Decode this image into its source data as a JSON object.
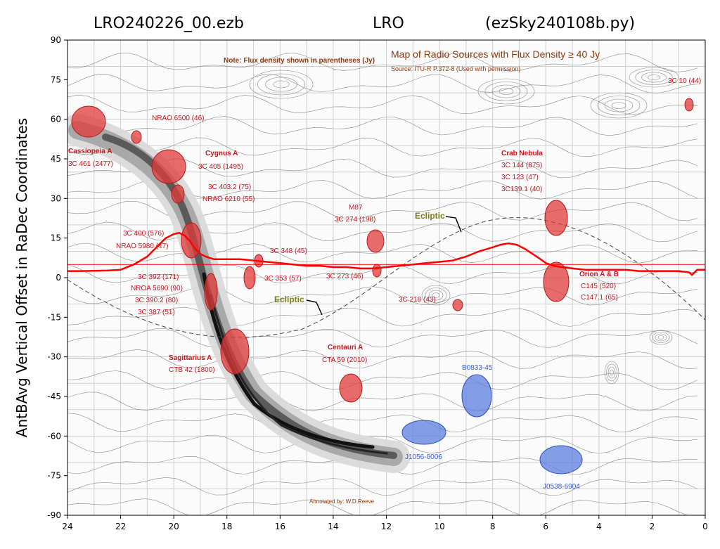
{
  "header": {
    "left": "LRO240226_00.ezb",
    "center": "LRO",
    "right": "(ezSky240108b.py)"
  },
  "chart_data": {
    "type": "line",
    "ylabel": "AntBAvg Vertical Offset in RaDec Coordinates",
    "xlabel": "",
    "xlim": [
      24,
      0
    ],
    "ylim": [
      -90,
      90
    ],
    "x_ticks": [
      "24",
      "22",
      "20",
      "18",
      "16",
      "14",
      "12",
      "10",
      "8",
      "6",
      "4",
      "2",
      "0"
    ],
    "y_ticks": [
      "90",
      "75",
      "60",
      "45",
      "30",
      "15",
      "0",
      "-15",
      "-30",
      "-45",
      "-60",
      "-75",
      "-90"
    ],
    "reference_line_y": 5,
    "series": [
      {
        "color": "#ff0000",
        "x": [
          24,
          23.5,
          23,
          22.5,
          22,
          21.5,
          21,
          20.6,
          20.3,
          20.0,
          19.8,
          19.6,
          19.4,
          19.2,
          19.0,
          18.8,
          18.5,
          18.0,
          17.5,
          17.0,
          16.5,
          16.0,
          15.5,
          15.0,
          14.5,
          14.0,
          13.5,
          13.0,
          12.5,
          12.0,
          11.5,
          11.0,
          10.5,
          10.0,
          9.5,
          9.0,
          8.5,
          8.0,
          7.7,
          7.4,
          7.1,
          6.8,
          6.5,
          6.2,
          6.0,
          5.7,
          5.4,
          5.0,
          4.5,
          4.0,
          3.5,
          3.0,
          2.5,
          2.0,
          1.5,
          1.0,
          0.6,
          0.5,
          0.3,
          0
        ],
        "y": [
          2.5,
          2.5,
          2.6,
          2.7,
          3,
          5,
          8,
          12,
          15,
          16.5,
          17,
          16,
          14,
          11,
          9,
          8,
          7,
          7,
          7,
          6.5,
          6,
          5.5,
          5,
          4.5,
          4.5,
          4,
          4,
          3.5,
          3.5,
          4,
          4.5,
          5,
          5.5,
          6,
          6.5,
          8,
          10,
          11.5,
          12.5,
          13,
          12.5,
          11,
          9,
          7,
          5.5,
          4.5,
          4,
          3.5,
          3,
          3,
          3,
          3,
          2.5,
          2.5,
          2.5,
          2.5,
          2,
          1,
          3,
          3
        ]
      }
    ]
  },
  "background_map": {
    "title": "Map of Radio Sources with Flux Density ≥ 40 Jy",
    "source_line": "Source: ITU-R P.372-8 (Used with permission)",
    "note": "Note: Flux density shown in parentheses (Jy)",
    "credit": "Annotated by: W.D.Reeve",
    "ecliptic_label": "Ecliptic",
    "labels": {
      "cassiopeia_name": "Cassiopeia A",
      "cassiopeia_flux": "3C 461 (2477)",
      "nrao6500": "NRAO 6500 (46)",
      "cygnus_name": "Cygnus A",
      "cygnus_flux": "3C 405 (1495)",
      "c4032": "3C 403.2 (75)",
      "nrao6210": "NRAO 6210 (55)",
      "c400": "3C 400 (576)",
      "nrao5980": "NRAO 5980 (47)",
      "c348": "3C 348 (45)",
      "c353": "3C 353 (57)",
      "c392": "3C 392 (171)",
      "nroa5690": "NROA 5690 (90)",
      "c3902": "3C 390.2 (80)",
      "c387": "3C 387 (51)",
      "sagittarius_name": "Sagittarius A",
      "sagittarius_flux": "CTB 42 (1800)",
      "centauri_name": "Centauri A",
      "centauri_flux": "CTA 59 (2010)",
      "m87": "M87",
      "c274": "3C 274 (198)",
      "c273": "3C 273 (46)",
      "c218": "3C 218 (43)",
      "crab_name": "Crab Nebula",
      "crab_1": "3C 144 (875)",
      "crab_2": "3C 123 (47)",
      "crab_3": "3C139.1 (40)",
      "orion_name": "Orion A & B",
      "orion_1": "C145 (520)",
      "orion_2": "C147.1 (65)",
      "c10": "3C 10 (44)",
      "b0833": "B0833-45",
      "j1056": "J1056-6006",
      "j0538": "J0538-6904"
    }
  }
}
